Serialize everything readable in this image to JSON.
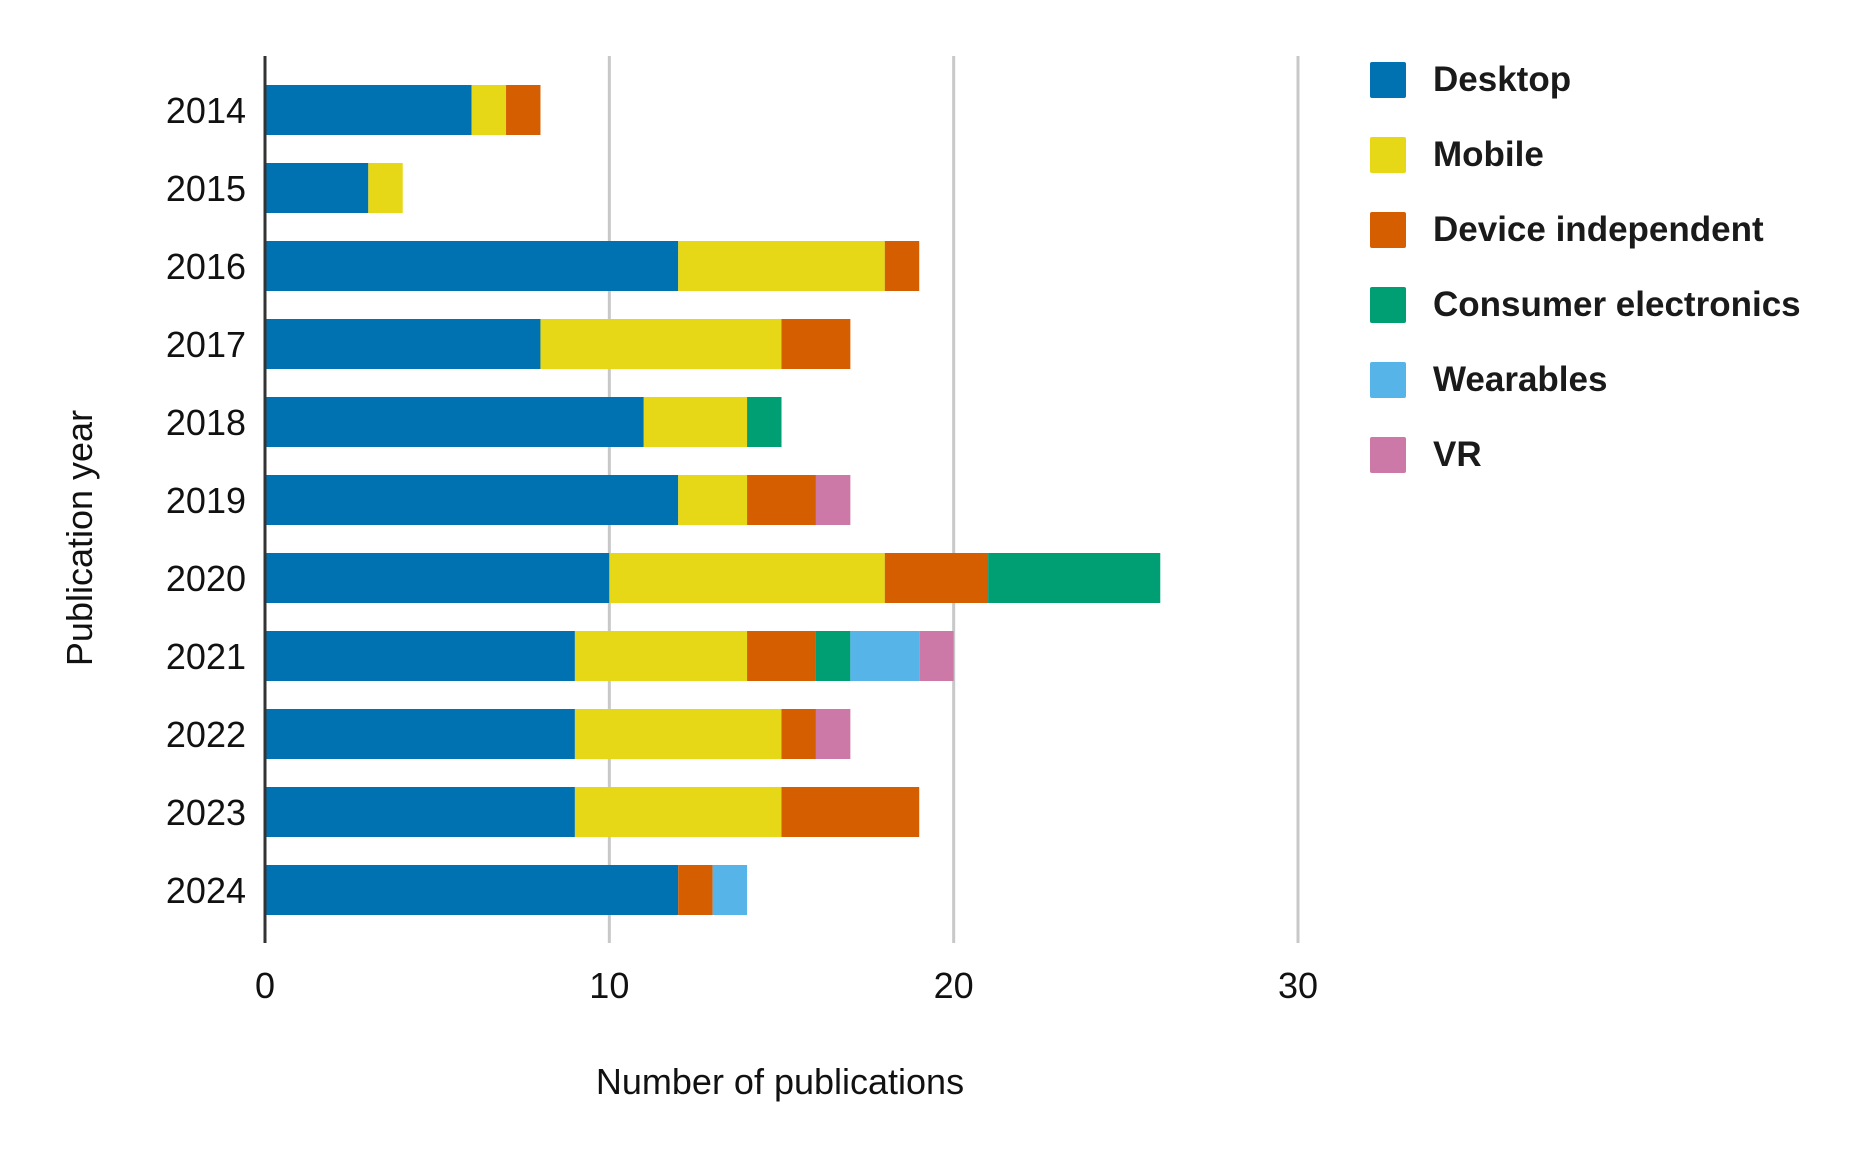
{
  "chart_data": {
    "type": "bar",
    "orientation": "horizontal",
    "stacked": true,
    "title": "",
    "xlabel": "Number of publications",
    "ylabel": "Publication year",
    "xlim": [
      0,
      30
    ],
    "xticks": [
      "0",
      "10",
      "20",
      "30"
    ],
    "grid": true,
    "legend_position": "top-right",
    "categories": [
      "2014",
      "2015",
      "2016",
      "2017",
      "2018",
      "2019",
      "2020",
      "2021",
      "2022",
      "2023",
      "2024"
    ],
    "series": [
      {
        "name": "Desktop",
        "color": "#0072B2",
        "values": [
          6,
          3,
          12,
          8,
          11,
          12,
          10,
          9,
          9,
          9,
          12
        ]
      },
      {
        "name": "Mobile",
        "color": "#E6D817",
        "values": [
          1,
          1,
          6,
          7,
          3,
          2,
          8,
          5,
          6,
          6,
          0
        ]
      },
      {
        "name": "Device independent",
        "color": "#D55E00",
        "values": [
          1,
          0,
          1,
          2,
          0,
          2,
          3,
          2,
          1,
          4,
          1
        ]
      },
      {
        "name": "Consumer electronics",
        "color": "#009E73",
        "values": [
          0,
          0,
          0,
          0,
          1,
          0,
          5,
          1,
          0,
          0,
          0
        ]
      },
      {
        "name": "Wearables",
        "color": "#56B4E9",
        "values": [
          0,
          0,
          0,
          0,
          0,
          0,
          0,
          2,
          0,
          0,
          1
        ]
      },
      {
        "name": "VR",
        "color": "#CC79A7",
        "values": [
          0,
          0,
          0,
          0,
          0,
          1,
          0,
          1,
          1,
          0,
          0
        ]
      }
    ]
  }
}
